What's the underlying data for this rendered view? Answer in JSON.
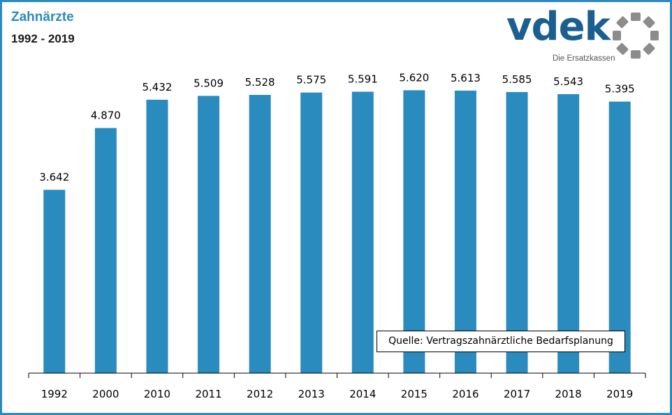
{
  "header": {
    "title": "Zahnärzte",
    "subtitle": "1992 - 2019"
  },
  "logo": {
    "wordmark": "vdek",
    "tagline": "Die Ersatzkassen",
    "brand_color": "#1a5f8f",
    "ring_color": "#8c8c8c"
  },
  "source_note": "Quelle: Vertragszahnärztliche Bedarfsplanung",
  "colors": {
    "bar": "#2a8bbf",
    "frame": "#2a8bbf",
    "title": "#2a8bbf"
  },
  "chart_data": {
    "type": "bar",
    "title": "Zahnärzte",
    "subtitle": "1992 - 2019",
    "categories": [
      "1992",
      "2000",
      "2010",
      "2011",
      "2012",
      "2013",
      "2014",
      "2015",
      "2016",
      "2017",
      "2018",
      "2019"
    ],
    "values": [
      3642,
      4870,
      5432,
      5509,
      5528,
      5575,
      5591,
      5620,
      5613,
      5585,
      5543,
      5395
    ],
    "value_labels": [
      "3.642",
      "4.870",
      "5.432",
      "5.509",
      "5.528",
      "5.575",
      "5.591",
      "5.620",
      "5.613",
      "5.585",
      "5.543",
      "5.395"
    ],
    "ylim": [
      0,
      6000
    ],
    "grid": false,
    "legend": "none"
  }
}
